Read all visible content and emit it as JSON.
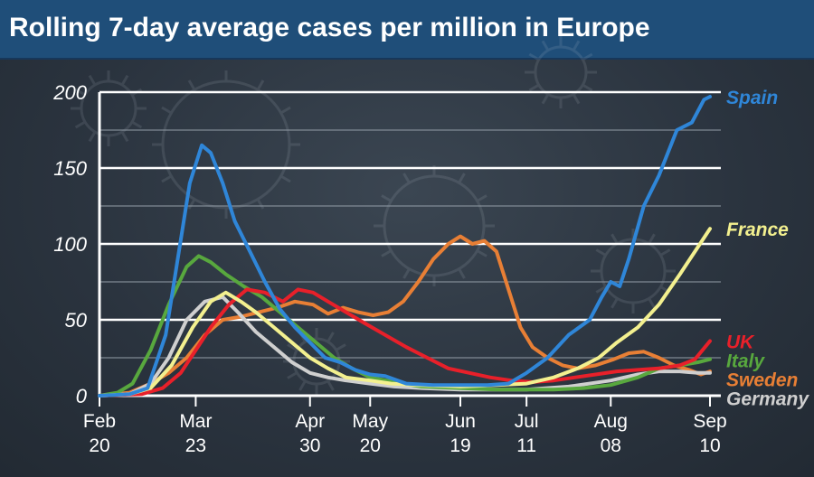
{
  "title": "Rolling 7-day average cases per million in Europe",
  "chart_data": {
    "type": "line",
    "title": "Rolling 7-day average cases per million in Europe",
    "xlabel": "",
    "ylabel": "",
    "ylim": [
      0,
      200
    ],
    "yticks": [
      0,
      50,
      100,
      150,
      200
    ],
    "xlim": [
      "2020-02-20",
      "2020-09-10"
    ],
    "xticks": [
      {
        "date": "2020-02-20",
        "line1": "Feb",
        "line2": "20"
      },
      {
        "date": "2020-03-23",
        "line1": "Mar",
        "line2": "23"
      },
      {
        "date": "2020-04-30",
        "line1": "Apr",
        "line2": "30"
      },
      {
        "date": "2020-05-20",
        "line1": "May",
        "line2": "20"
      },
      {
        "date": "2020-06-19",
        "line1": "Jun",
        "line2": "19"
      },
      {
        "date": "2020-07-11",
        "line1": "Jul",
        "line2": "11"
      },
      {
        "date": "2020-08-08",
        "line1": "Aug",
        "line2": "08"
      },
      {
        "date": "2020-09-10",
        "line1": "Sep",
        "line2": "10"
      }
    ],
    "grid": true,
    "legend": "right-end labels",
    "series": [
      {
        "name": "Spain",
        "color": "#2f86d8",
        "label_value": 197,
        "points": [
          [
            "2020-02-20",
            0
          ],
          [
            "2020-03-01",
            1
          ],
          [
            "2020-03-07",
            5
          ],
          [
            "2020-03-13",
            40
          ],
          [
            "2020-03-17",
            90
          ],
          [
            "2020-03-21",
            140
          ],
          [
            "2020-03-25",
            165
          ],
          [
            "2020-03-28",
            160
          ],
          [
            "2020-04-01",
            140
          ],
          [
            "2020-04-05",
            115
          ],
          [
            "2020-04-10",
            95
          ],
          [
            "2020-04-15",
            75
          ],
          [
            "2020-04-20",
            57
          ],
          [
            "2020-04-25",
            45
          ],
          [
            "2020-04-30",
            35
          ],
          [
            "2020-05-05",
            25
          ],
          [
            "2020-05-10",
            22
          ],
          [
            "2020-05-15",
            17
          ],
          [
            "2020-05-20",
            14
          ],
          [
            "2020-05-25",
            13
          ],
          [
            "2020-06-01",
            8
          ],
          [
            "2020-06-10",
            7
          ],
          [
            "2020-06-19",
            7
          ],
          [
            "2020-06-28",
            7
          ],
          [
            "2020-07-05",
            8
          ],
          [
            "2020-07-11",
            15
          ],
          [
            "2020-07-18",
            25
          ],
          [
            "2020-07-25",
            40
          ],
          [
            "2020-08-01",
            50
          ],
          [
            "2020-08-05",
            65
          ],
          [
            "2020-08-08",
            75
          ],
          [
            "2020-08-11",
            72
          ],
          [
            "2020-08-14",
            90
          ],
          [
            "2020-08-19",
            125
          ],
          [
            "2020-08-24",
            145
          ],
          [
            "2020-08-30",
            175
          ],
          [
            "2020-09-04",
            180
          ],
          [
            "2020-09-08",
            195
          ],
          [
            "2020-09-10",
            197
          ]
        ]
      },
      {
        "name": "France",
        "color": "#f3f08f",
        "label_value": 110,
        "points": [
          [
            "2020-02-20",
            0
          ],
          [
            "2020-03-01",
            1
          ],
          [
            "2020-03-08",
            5
          ],
          [
            "2020-03-15",
            20
          ],
          [
            "2020-03-22",
            45
          ],
          [
            "2020-03-28",
            62
          ],
          [
            "2020-04-02",
            68
          ],
          [
            "2020-04-07",
            62
          ],
          [
            "2020-04-12",
            55
          ],
          [
            "2020-04-18",
            45
          ],
          [
            "2020-04-24",
            35
          ],
          [
            "2020-04-30",
            25
          ],
          [
            "2020-05-06",
            18
          ],
          [
            "2020-05-12",
            12
          ],
          [
            "2020-05-20",
            10
          ],
          [
            "2020-05-27",
            8
          ],
          [
            "2020-06-05",
            7
          ],
          [
            "2020-06-19",
            6
          ],
          [
            "2020-07-01",
            7
          ],
          [
            "2020-07-11",
            8
          ],
          [
            "2020-07-20",
            12
          ],
          [
            "2020-07-28",
            18
          ],
          [
            "2020-08-04",
            25
          ],
          [
            "2020-08-10",
            35
          ],
          [
            "2020-08-17",
            45
          ],
          [
            "2020-08-24",
            60
          ],
          [
            "2020-08-31",
            80
          ],
          [
            "2020-09-05",
            95
          ],
          [
            "2020-09-10",
            110
          ]
        ]
      },
      {
        "name": "UK",
        "color": "#e8202a",
        "label_value": 36,
        "points": [
          [
            "2020-02-20",
            0
          ],
          [
            "2020-03-05",
            1
          ],
          [
            "2020-03-12",
            5
          ],
          [
            "2020-03-18",
            15
          ],
          [
            "2020-03-23",
            30
          ],
          [
            "2020-03-28",
            45
          ],
          [
            "2020-04-03",
            60
          ],
          [
            "2020-04-09",
            70
          ],
          [
            "2020-04-15",
            68
          ],
          [
            "2020-04-21",
            62
          ],
          [
            "2020-04-26",
            70
          ],
          [
            "2020-05-01",
            68
          ],
          [
            "2020-05-06",
            62
          ],
          [
            "2020-05-12",
            55
          ],
          [
            "2020-05-18",
            48
          ],
          [
            "2020-05-25",
            40
          ],
          [
            "2020-06-01",
            32
          ],
          [
            "2020-06-08",
            25
          ],
          [
            "2020-06-15",
            18
          ],
          [
            "2020-06-22",
            15
          ],
          [
            "2020-06-29",
            12
          ],
          [
            "2020-07-06",
            10
          ],
          [
            "2020-07-13",
            9
          ],
          [
            "2020-07-20",
            10
          ],
          [
            "2020-07-27",
            12
          ],
          [
            "2020-08-03",
            14
          ],
          [
            "2020-08-10",
            16
          ],
          [
            "2020-08-17",
            17
          ],
          [
            "2020-08-24",
            18
          ],
          [
            "2020-08-31",
            20
          ],
          [
            "2020-09-05",
            24
          ],
          [
            "2020-09-10",
            36
          ]
        ]
      },
      {
        "name": "Italy",
        "color": "#58a83e",
        "label_value": 24,
        "points": [
          [
            "2020-02-20",
            0
          ],
          [
            "2020-02-26",
            2
          ],
          [
            "2020-03-02",
            8
          ],
          [
            "2020-03-08",
            30
          ],
          [
            "2020-03-14",
            60
          ],
          [
            "2020-03-20",
            85
          ],
          [
            "2020-03-24",
            92
          ],
          [
            "2020-03-28",
            88
          ],
          [
            "2020-04-02",
            80
          ],
          [
            "2020-04-08",
            72
          ],
          [
            "2020-04-14",
            65
          ],
          [
            "2020-04-20",
            55
          ],
          [
            "2020-04-26",
            45
          ],
          [
            "2020-05-02",
            35
          ],
          [
            "2020-05-08",
            25
          ],
          [
            "2020-05-14",
            18
          ],
          [
            "2020-05-20",
            12
          ],
          [
            "2020-05-28",
            9
          ],
          [
            "2020-06-06",
            6
          ],
          [
            "2020-06-19",
            5
          ],
          [
            "2020-07-01",
            4
          ],
          [
            "2020-07-11",
            4
          ],
          [
            "2020-07-20",
            4
          ],
          [
            "2020-07-30",
            5
          ],
          [
            "2020-08-08",
            7
          ],
          [
            "2020-08-17",
            12
          ],
          [
            "2020-08-24",
            18
          ],
          [
            "2020-08-31",
            20
          ],
          [
            "2020-09-06",
            22
          ],
          [
            "2020-09-10",
            24
          ]
        ]
      },
      {
        "name": "Germany",
        "color": "#cfcfcf",
        "label_value": 15,
        "points": [
          [
            "2020-02-20",
            0
          ],
          [
            "2020-03-01",
            1
          ],
          [
            "2020-03-08",
            8
          ],
          [
            "2020-03-14",
            25
          ],
          [
            "2020-03-20",
            50
          ],
          [
            "2020-03-26",
            62
          ],
          [
            "2020-04-01",
            65
          ],
          [
            "2020-04-06",
            55
          ],
          [
            "2020-04-12",
            42
          ],
          [
            "2020-04-18",
            32
          ],
          [
            "2020-04-24",
            22
          ],
          [
            "2020-04-30",
            15
          ],
          [
            "2020-05-06",
            12
          ],
          [
            "2020-05-12",
            10
          ],
          [
            "2020-05-20",
            8
          ],
          [
            "2020-05-28",
            6
          ],
          [
            "2020-06-06",
            5
          ],
          [
            "2020-06-19",
            4
          ],
          [
            "2020-07-01",
            4
          ],
          [
            "2020-07-11",
            4
          ],
          [
            "2020-07-25",
            6
          ],
          [
            "2020-08-08",
            10
          ],
          [
            "2020-08-17",
            14
          ],
          [
            "2020-08-24",
            16
          ],
          [
            "2020-08-31",
            16
          ],
          [
            "2020-09-06",
            15
          ],
          [
            "2020-09-10",
            15
          ]
        ]
      },
      {
        "name": "Sweden",
        "color": "#e87f35",
        "label_value": 16,
        "points": [
          [
            "2020-02-20",
            0
          ],
          [
            "2020-03-01",
            2
          ],
          [
            "2020-03-08",
            8
          ],
          [
            "2020-03-14",
            15
          ],
          [
            "2020-03-20",
            25
          ],
          [
            "2020-03-26",
            40
          ],
          [
            "2020-04-01",
            50
          ],
          [
            "2020-04-07",
            52
          ],
          [
            "2020-04-13",
            55
          ],
          [
            "2020-04-19",
            58
          ],
          [
            "2020-04-25",
            62
          ],
          [
            "2020-05-01",
            60
          ],
          [
            "2020-05-06",
            54
          ],
          [
            "2020-05-11",
            58
          ],
          [
            "2020-05-16",
            55
          ],
          [
            "2020-05-21",
            53
          ],
          [
            "2020-05-26",
            55
          ],
          [
            "2020-05-31",
            62
          ],
          [
            "2020-06-05",
            75
          ],
          [
            "2020-06-10",
            90
          ],
          [
            "2020-06-15",
            100
          ],
          [
            "2020-06-19",
            105
          ],
          [
            "2020-06-23",
            100
          ],
          [
            "2020-06-27",
            102
          ],
          [
            "2020-07-01",
            95
          ],
          [
            "2020-07-05",
            70
          ],
          [
            "2020-07-09",
            45
          ],
          [
            "2020-07-13",
            32
          ],
          [
            "2020-07-18",
            25
          ],
          [
            "2020-07-23",
            20
          ],
          [
            "2020-07-28",
            18
          ],
          [
            "2020-08-03",
            20
          ],
          [
            "2020-08-09",
            24
          ],
          [
            "2020-08-14",
            28
          ],
          [
            "2020-08-19",
            29
          ],
          [
            "2020-08-24",
            25
          ],
          [
            "2020-08-29",
            20
          ],
          [
            "2020-09-03",
            17
          ],
          [
            "2020-09-07",
            14
          ],
          [
            "2020-09-10",
            16
          ]
        ]
      }
    ]
  }
}
